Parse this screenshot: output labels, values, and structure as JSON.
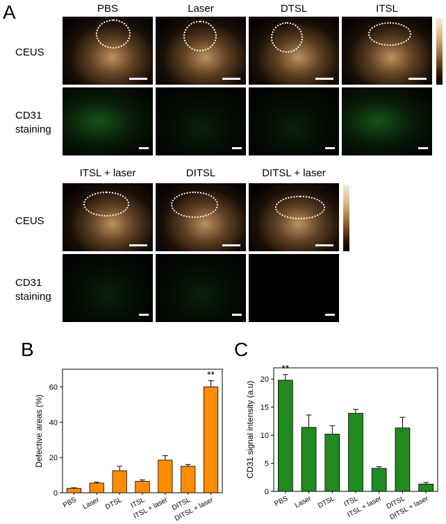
{
  "panel_labels": {
    "a": "A",
    "b": "B",
    "c": "C"
  },
  "top_row": {
    "columns": [
      "PBS",
      "Laser",
      "DTSL",
      "ITSL"
    ],
    "row_labels": {
      "ceus": "CEUS",
      "cd31_line1": "CD31",
      "cd31_line2": "staining"
    }
  },
  "bottom_row": {
    "columns": [
      "ITSL + laser",
      "DITSL",
      "DITSL + laser"
    ],
    "row_labels": {
      "ceus": "CEUS",
      "cd31_line1": "CD31",
      "cd31_line2": "staining"
    }
  },
  "colors": {
    "bar_b": "#ff8c00",
    "bar_c": "#1f8a1f",
    "cd31_signal": "#2fbf2f"
  },
  "chart_data": [
    {
      "type": "bar",
      "categories": [
        "PBS",
        "Laser",
        "DTSL",
        "ITSL",
        "ITSL + laser",
        "DITSL",
        "DITSL + laser"
      ],
      "values": [
        2.5,
        5.5,
        12.5,
        6.5,
        18.5,
        15.0,
        60.0
      ],
      "errors": [
        0.3,
        0.5,
        2.5,
        0.8,
        2.5,
        1.0,
        3.5
      ],
      "ylabel": "Defective areas (%)",
      "ylim": [
        0,
        70
      ],
      "yticks": [
        0,
        20,
        40,
        60
      ],
      "annotations": [
        {
          "category": "DITSL + laser",
          "text": "**"
        }
      ],
      "grid": false
    },
    {
      "type": "bar",
      "categories": [
        "PBS",
        "Laser",
        "DTSL",
        "ITSL",
        "ITSL + laser",
        "DITSL",
        "DITSL + laser"
      ],
      "values": [
        19.8,
        11.4,
        10.2,
        13.9,
        4.1,
        11.3,
        1.3
      ],
      "errors": [
        1.0,
        2.2,
        1.5,
        0.7,
        0.3,
        1.9,
        0.3
      ],
      "ylabel": "CD31 signal intensity (a.u)",
      "ylim": [
        0,
        22
      ],
      "yticks": [
        0,
        5,
        10,
        15,
        20
      ],
      "annotations": [
        {
          "category": "PBS",
          "text": "**"
        }
      ],
      "grid": false
    }
  ]
}
